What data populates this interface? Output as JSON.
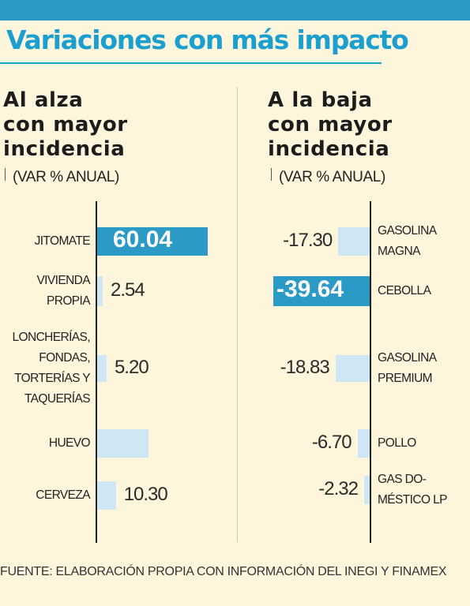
{
  "title": "Variaciones con más impacto",
  "source": "FUENTE: ELABORACIÓN PROPIA CON INFORMACIÓN DEL INEGI Y FINAMEX",
  "colors": {
    "accent": "#2b9bc6",
    "title": "#1a9fcf",
    "bar": "#cfe7f5",
    "background": "#fdf5dc"
  },
  "chart_data": [
    {
      "type": "bar",
      "orientation": "horizontal",
      "title": "Al alza\ncon mayor\nincidencia",
      "subtitle": "(VAR % ANUAL)",
      "categories": [
        "JITOMATE",
        "VIVIENDA\nPROPIA",
        "LONCHERÍAS,\nFONDAS,\nTORTERÍAS Y\nTAQUERÍAS",
        "HUEVO",
        "CERVEZA"
      ],
      "values": [
        60.04,
        2.54,
        5.2,
        null,
        10.3
      ],
      "value_labels": [
        "60.04",
        "2.54",
        "5.20",
        "",
        "10.30"
      ],
      "highlight_index": 0
    },
    {
      "type": "bar",
      "orientation": "horizontal",
      "title": "A la baja\ncon mayor\nincidencia",
      "subtitle": "(VAR % ANUAL)",
      "categories": [
        "GASOLINA\nMAGNA",
        "CEBOLLA",
        "GASOLINA\nPREMIUM",
        "POLLO",
        "GAS DO-\nMÉSTICO LP"
      ],
      "values": [
        -17.3,
        -39.64,
        -18.83,
        -6.7,
        -2.32
      ],
      "value_labels": [
        "-17.30",
        "-39.64",
        "-18.83",
        "-6.70",
        "-2.32"
      ],
      "highlight_index": 1
    }
  ]
}
